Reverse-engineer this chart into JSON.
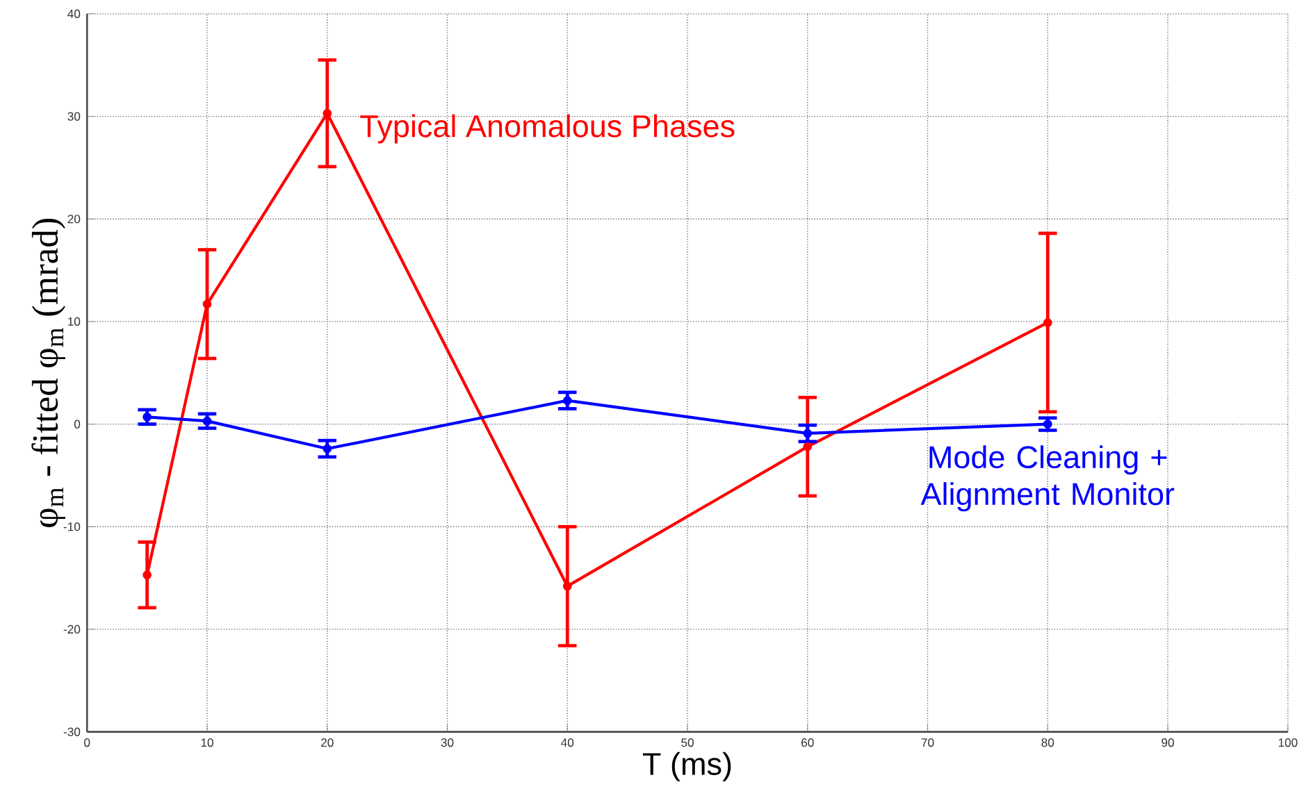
{
  "chart_data": {
    "type": "line",
    "xlabel": "T (ms)",
    "ylabel": "φ$_{m}$ - fitted φ$_{m}$ (mrad)",
    "xlim": [
      0,
      100
    ],
    "ylim": [
      -30,
      40
    ],
    "xticks": [
      0,
      10,
      20,
      30,
      40,
      50,
      60,
      70,
      80,
      90,
      100
    ],
    "yticks": [
      -30,
      -20,
      -10,
      0,
      10,
      20,
      30,
      40
    ],
    "grid": true,
    "marker": "circle",
    "line_style": "solid",
    "series": [
      {
        "name": "Typical Anomalous Phases",
        "color": "#ff0000",
        "x": [
          5,
          10,
          20,
          40,
          60,
          80
        ],
        "values": [
          -14.7,
          11.7,
          30.3,
          -15.8,
          -2.2,
          9.9
        ],
        "errors": [
          3.2,
          5.3,
          5.2,
          5.8,
          4.8,
          8.7
        ]
      },
      {
        "name": "Mode Cleaning + Alignment Monitor",
        "color": "#0000ff",
        "x": [
          5,
          10,
          20,
          40,
          60,
          80
        ],
        "values": [
          0.7,
          0.3,
          -2.4,
          2.3,
          -0.9,
          0.0
        ],
        "errors": [
          0.7,
          0.7,
          0.8,
          0.8,
          0.8,
          0.6
        ]
      }
    ]
  }
}
